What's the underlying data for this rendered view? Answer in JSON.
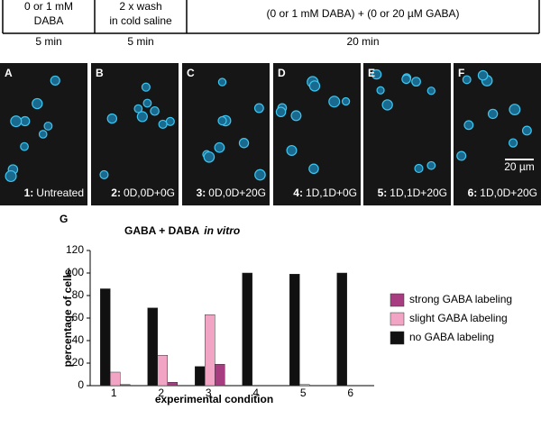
{
  "timeline": {
    "steps": [
      {
        "lines": [
          "0 or 1 mM",
          "DABA"
        ],
        "duration": "5 min"
      },
      {
        "lines": [
          "2 x wash",
          "in cold saline"
        ],
        "duration": "5 min"
      },
      {
        "lines": [
          "(0 or 1 mM DABA) + (0 or 20 µM GABA)"
        ],
        "duration": "20 min"
      }
    ]
  },
  "panels": [
    {
      "letter": "A",
      "number": "1:",
      "caption": "Untreated"
    },
    {
      "letter": "B",
      "number": "2:",
      "caption": "0D,0D+0G"
    },
    {
      "letter": "C",
      "number": "3:",
      "caption": "0D,0D+20G"
    },
    {
      "letter": "D",
      "number": "4:",
      "caption": "1D,1D+0G"
    },
    {
      "letter": "E",
      "number": "5:",
      "caption": "1D,1D+20G"
    },
    {
      "letter": "F",
      "number": "6:",
      "caption": "1D,0D+20G"
    }
  ],
  "scale_bar": "20 µm",
  "chart_panel_letter": "G",
  "chart_data": {
    "type": "bar",
    "title": "GABA + DABA",
    "title_italic": "in vitro",
    "x_label": "experimental condition",
    "y_label": "percentage of cells",
    "categories": [
      "1",
      "2",
      "3",
      "4",
      "5",
      "6"
    ],
    "series": [
      {
        "name": "no GABA labeling",
        "color": "#111111",
        "values": [
          86,
          69,
          17,
          100,
          99,
          100
        ]
      },
      {
        "name": "slight GABA labeling",
        "color": "#f2a4c4",
        "values": [
          12,
          27,
          63,
          0,
          1,
          0
        ]
      },
      {
        "name": "strong GABA labeling",
        "color": "#a83c80",
        "values": [
          1,
          3,
          19,
          0,
          0,
          0
        ]
      }
    ],
    "ylim": [
      0,
      120
    ],
    "yticks": [
      0,
      20,
      40,
      60,
      80,
      100,
      120
    ],
    "legend": "right"
  }
}
